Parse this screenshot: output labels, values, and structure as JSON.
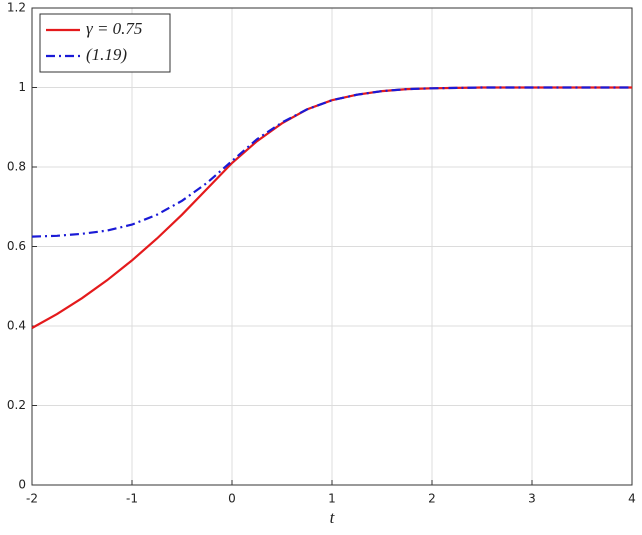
{
  "chart_data": {
    "type": "line",
    "xlabel": "t",
    "x": [
      -2,
      -1.75,
      -1.5,
      -1.25,
      -1,
      -0.75,
      -0.5,
      -0.25,
      0,
      0.25,
      0.5,
      0.75,
      1,
      1.25,
      1.5,
      1.75,
      2,
      2.25,
      2.5,
      2.75,
      3,
      3.25,
      3.5,
      3.75,
      4
    ],
    "series": [
      {
        "name": "γ = 0.75",
        "color": "#e41a1c",
        "dash": "solid",
        "values": [
          0.395,
          0.43,
          0.47,
          0.515,
          0.565,
          0.62,
          0.68,
          0.745,
          0.81,
          0.865,
          0.91,
          0.945,
          0.968,
          0.982,
          0.991,
          0.996,
          0.998,
          0.999,
          1,
          1,
          1,
          1,
          1,
          1,
          1
        ]
      },
      {
        "name": "(1.19)",
        "color": "#1a1ad6",
        "dash": "dashdot",
        "values": [
          0.625,
          0.627,
          0.632,
          0.64,
          0.655,
          0.68,
          0.715,
          0.76,
          0.815,
          0.87,
          0.912,
          0.945,
          0.968,
          0.982,
          0.991,
          0.996,
          0.998,
          0.999,
          1,
          1,
          1,
          1,
          1,
          1,
          1
        ]
      }
    ],
    "xlim": [
      -2,
      4
    ],
    "xticks": [
      -2,
      -1,
      0,
      1,
      2,
      3,
      4
    ],
    "ylim": [
      0,
      1.2
    ],
    "yticks": [
      0,
      0.2,
      0.4,
      0.6,
      0.8,
      1,
      1.2
    ],
    "grid": true,
    "legend": "upper left"
  }
}
